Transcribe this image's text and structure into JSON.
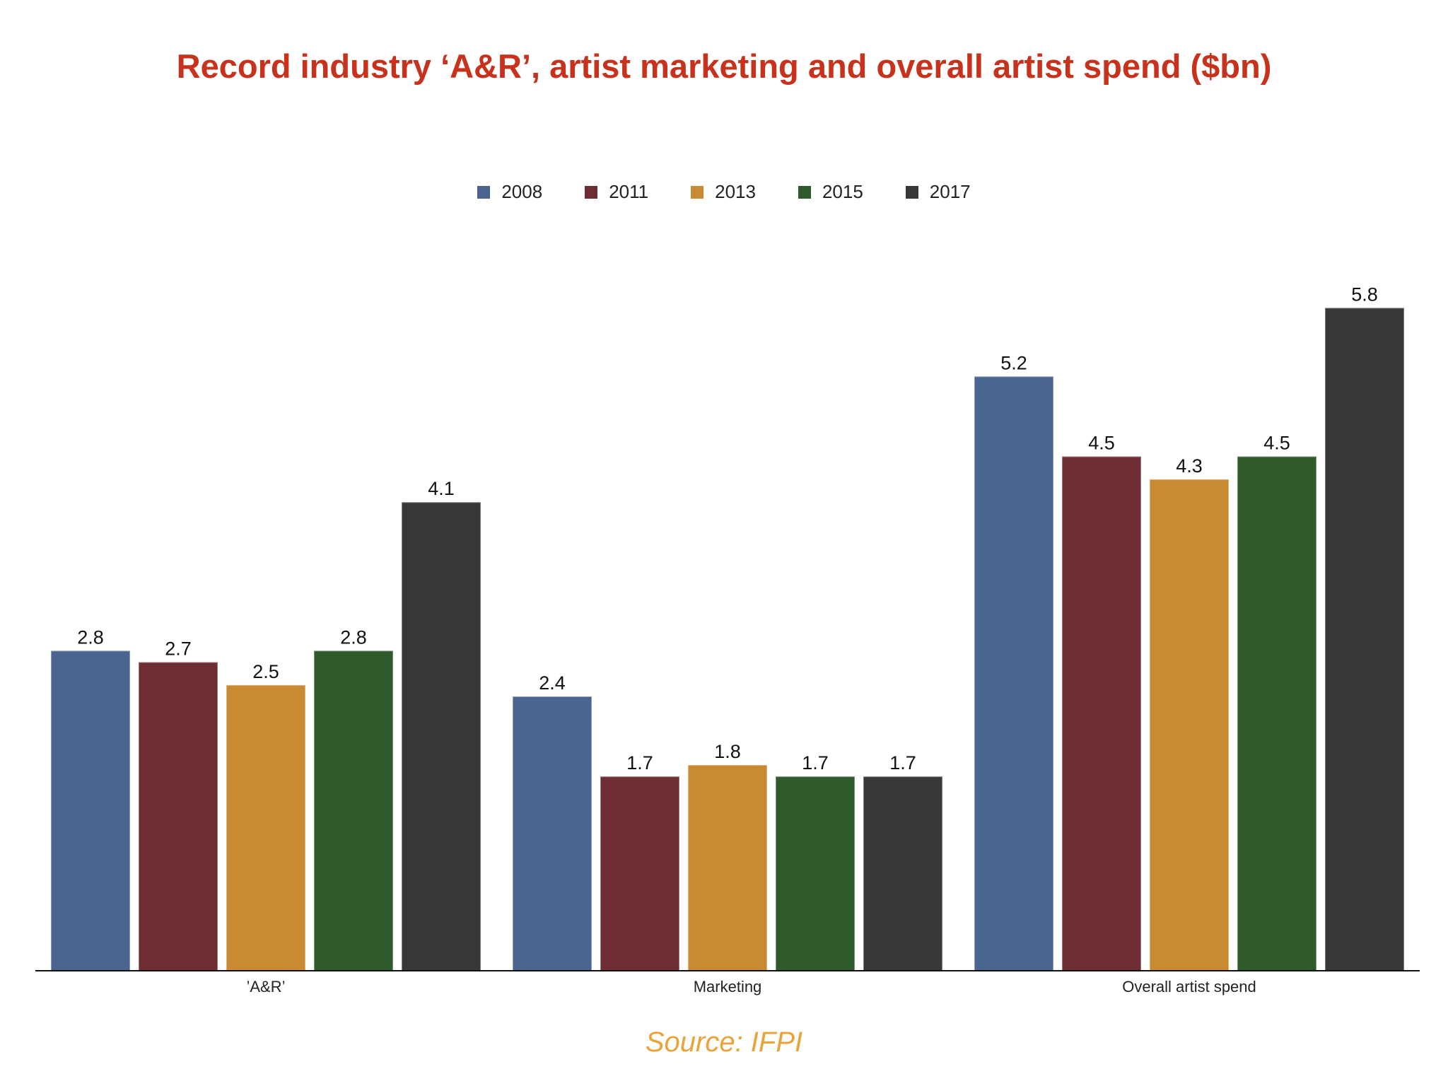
{
  "chart_data": {
    "type": "bar",
    "title": "Record industry ‘A&R’, artist marketing and overall artist spend ($bn)",
    "categories": [
      "’A&R’",
      "Marketing",
      "Overall artist spend"
    ],
    "series": [
      {
        "name": "2008",
        "color": "#4a6690",
        "values": [
          2.8,
          2.4,
          5.2
        ]
      },
      {
        "name": "2011",
        "color": "#6e2e33",
        "values": [
          2.7,
          1.7,
          4.5
        ]
      },
      {
        "name": "2013",
        "color": "#c98a32",
        "values": [
          2.5,
          1.8,
          4.3
        ]
      },
      {
        "name": "2015",
        "color": "#2f5a2c",
        "values": [
          2.8,
          1.7,
          4.5
        ]
      },
      {
        "name": "2017",
        "color": "#383838",
        "values": [
          4.1,
          1.7,
          5.8
        ]
      }
    ],
    "ylim": [
      0,
      6.05
    ],
    "grid": false,
    "legend": "top-center",
    "data_labels": true
  },
  "source": "Source: IFPI"
}
